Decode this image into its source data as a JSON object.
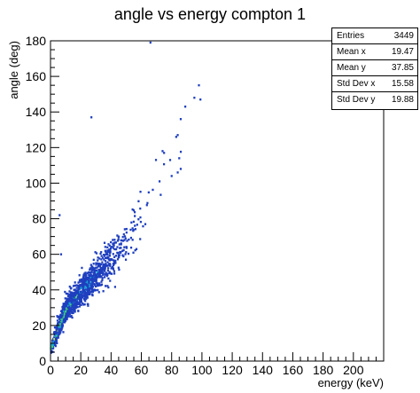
{
  "chart_data": {
    "type": "heatmap",
    "title": "angle vs energy compton 1",
    "xlabel": "energy (keV)",
    "ylabel": "angle (deg)",
    "xlim": [
      0,
      220
    ],
    "ylim": [
      0,
      180
    ],
    "x_ticks": [
      0,
      20,
      40,
      60,
      80,
      100,
      120,
      140,
      160,
      180,
      200
    ],
    "y_ticks": [
      0,
      20,
      40,
      60,
      80,
      100,
      120,
      140,
      160,
      180
    ],
    "grid": false,
    "legend": "none",
    "colors": {
      "low": "#1f3fbf",
      "mid": "#19a7d6",
      "high": "#3fcf73",
      "peak": "#b8e04a"
    },
    "stats": {
      "entries_label": "Entries",
      "entries": "3449",
      "mean_x_label": "Mean x",
      "mean_x": "19.47",
      "mean_y_label": "Mean y",
      "mean_y": "37.85",
      "std_x_label": "Std Dev x",
      "std_x": "15.58",
      "std_y_label": "Std Dev y",
      "std_y": "19.88"
    },
    "outliers": [
      [
        66,
        179
      ],
      [
        98,
        155
      ],
      [
        95,
        148
      ],
      [
        99,
        147
      ],
      [
        27,
        137
      ],
      [
        89,
        143
      ],
      [
        86,
        136
      ],
      [
        84,
        127
      ],
      [
        83,
        126
      ],
      [
        85,
        114
      ],
      [
        79,
        113
      ],
      [
        75,
        117
      ],
      [
        74,
        118
      ],
      [
        86,
        108
      ],
      [
        84,
        106
      ],
      [
        80,
        104
      ],
      [
        72,
        101
      ],
      [
        6,
        82
      ],
      [
        7,
        60
      ]
    ]
  }
}
